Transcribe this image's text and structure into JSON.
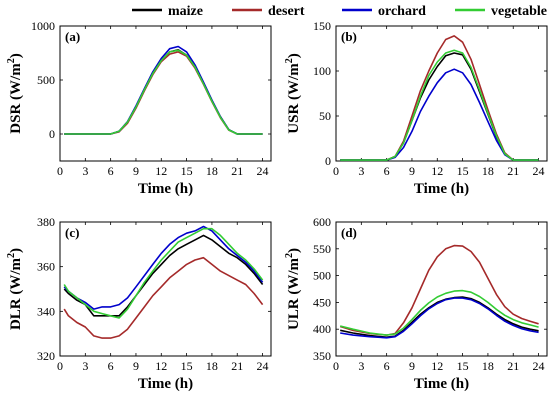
{
  "legend": [
    {
      "name": "maize",
      "color": "#000000"
    },
    {
      "name": "desert",
      "color": "#a52a2a"
    },
    {
      "name": "orchard",
      "color": "#0000cc"
    },
    {
      "name": "vegetable",
      "color": "#33cc33"
    }
  ],
  "chart_data": [
    {
      "type": "line",
      "tag": "(a)",
      "ylabel": "DSR (W/m",
      "ylabel_sup": "2",
      "ylabel_close": ")",
      "xlabel": "Time (h)",
      "xlim": [
        0,
        25
      ],
      "ylim": [
        -250,
        1000
      ],
      "xticks": [
        0,
        3,
        6,
        9,
        12,
        15,
        18,
        21,
        24
      ],
      "yticks": [
        0,
        500,
        1000
      ],
      "x": [
        0.5,
        3,
        6,
        7,
        8,
        9,
        10,
        11,
        12,
        13,
        14,
        15,
        16,
        17,
        18,
        19,
        20,
        21,
        22,
        23,
        24
      ],
      "series": [
        {
          "name": "maize",
          "values": [
            0,
            0,
            0,
            25,
            110,
            250,
            410,
            560,
            680,
            760,
            780,
            730,
            620,
            470,
            310,
            160,
            40,
            0,
            0,
            0,
            0
          ]
        },
        {
          "name": "desert",
          "values": [
            0,
            0,
            0,
            20,
            100,
            240,
            400,
            550,
            670,
            740,
            760,
            720,
            610,
            460,
            300,
            150,
            35,
            0,
            0,
            0,
            0
          ]
        },
        {
          "name": "orchard",
          "values": [
            0,
            0,
            0,
            25,
            115,
            260,
            420,
            575,
            700,
            790,
            810,
            760,
            640,
            480,
            315,
            160,
            40,
            0,
            0,
            0,
            0
          ]
        },
        {
          "name": "vegetable",
          "values": [
            0,
            0,
            0,
            25,
            110,
            250,
            410,
            560,
            680,
            760,
            775,
            730,
            620,
            465,
            305,
            155,
            38,
            0,
            0,
            0,
            0
          ]
        }
      ]
    },
    {
      "type": "line",
      "tag": "(b)",
      "ylabel": "USR (W/m",
      "ylabel_sup": "2",
      "ylabel_close": ")",
      "xlabel": "Time (h)",
      "xlim": [
        0,
        25
      ],
      "ylim": [
        0,
        150
      ],
      "xticks": [
        0,
        3,
        6,
        9,
        12,
        15,
        18,
        21,
        24
      ],
      "yticks": [
        0,
        50,
        100,
        150
      ],
      "x": [
        0.5,
        3,
        6,
        7,
        8,
        9,
        10,
        11,
        12,
        13,
        14,
        15,
        16,
        17,
        18,
        19,
        20,
        21,
        22,
        23,
        24
      ],
      "series": [
        {
          "name": "maize",
          "values": [
            1,
            1,
            1,
            5,
            20,
            45,
            70,
            90,
            105,
            117,
            120,
            118,
            102,
            77,
            52,
            27,
            8,
            1,
            1,
            1,
            1
          ]
        },
        {
          "name": "desert",
          "values": [
            1,
            1,
            1,
            5,
            22,
            50,
            78,
            100,
            120,
            135,
            139,
            132,
            113,
            85,
            57,
            30,
            9,
            1,
            1,
            1,
            1
          ]
        },
        {
          "name": "orchard",
          "values": [
            1,
            1,
            1,
            4,
            15,
            33,
            55,
            72,
            87,
            98,
            102,
            98,
            85,
            65,
            44,
            23,
            7,
            1,
            1,
            1,
            1
          ]
        },
        {
          "name": "vegetable",
          "values": [
            1,
            1,
            1,
            5,
            20,
            45,
            72,
            95,
            110,
            120,
            123,
            120,
            104,
            79,
            53,
            28,
            8,
            1,
            1,
            1,
            1
          ]
        }
      ]
    },
    {
      "type": "line",
      "tag": "(c)",
      "ylabel": "DLR (W/m",
      "ylabel_sup": "2",
      "ylabel_close": ")",
      "xlabel": "Time (h)",
      "xlim": [
        0,
        25
      ],
      "ylim": [
        320,
        380
      ],
      "xticks": [
        0,
        3,
        6,
        9,
        12,
        15,
        18,
        21,
        24
      ],
      "yticks": [
        320,
        340,
        360,
        380
      ],
      "x": [
        0.5,
        1,
        2,
        3,
        4,
        5,
        6,
        7,
        8,
        9,
        10,
        11,
        12,
        13,
        14,
        15,
        16,
        17,
        18,
        19,
        20,
        21,
        22,
        23,
        24
      ],
      "series": [
        {
          "name": "maize",
          "values": [
            350,
            348,
            345,
            343,
            338,
            338,
            338,
            338,
            342,
            347,
            352,
            357,
            361,
            365,
            368,
            370,
            372,
            374,
            372,
            369,
            366,
            364,
            361,
            357,
            352
          ]
        },
        {
          "name": "desert",
          "values": [
            341,
            338,
            335,
            333,
            329,
            328,
            328,
            329,
            332,
            337,
            342,
            347,
            351,
            355,
            358,
            361,
            363,
            364,
            361,
            358,
            356,
            354,
            352,
            348,
            343
          ]
        },
        {
          "name": "orchard",
          "values": [
            351,
            349,
            346,
            344,
            341,
            342,
            342,
            343,
            346,
            351,
            356,
            361,
            366,
            370,
            373,
            375,
            376,
            378,
            376,
            372,
            368,
            365,
            362,
            358,
            353
          ]
        },
        {
          "name": "vegetable",
          "values": [
            352,
            349,
            346,
            343,
            340,
            339,
            338,
            337,
            341,
            347,
            353,
            358,
            363,
            367,
            371,
            373,
            375,
            377,
            377,
            374,
            370,
            366,
            363,
            359,
            354
          ]
        }
      ]
    },
    {
      "type": "line",
      "tag": "(d)",
      "ylabel": "ULR (W/m",
      "ylabel_sup": "2",
      "ylabel_close": ")",
      "xlabel": "Time (h)",
      "xlim": [
        0,
        25
      ],
      "ylim": [
        350,
        600
      ],
      "xticks": [
        0,
        3,
        6,
        9,
        12,
        15,
        18,
        21,
        24
      ],
      "yticks": [
        350,
        400,
        450,
        500,
        550,
        600
      ],
      "x": [
        0.5,
        2,
        4,
        6,
        7,
        8,
        9,
        10,
        11,
        12,
        13,
        14,
        15,
        16,
        17,
        18,
        19,
        20,
        21,
        22,
        23,
        24
      ],
      "series": [
        {
          "name": "maize",
          "values": [
            398,
            393,
            388,
            385,
            387,
            398,
            413,
            428,
            440,
            450,
            456,
            459,
            460,
            457,
            450,
            440,
            428,
            418,
            410,
            404,
            400,
            397
          ]
        },
        {
          "name": "desert",
          "values": [
            405,
            398,
            392,
            389,
            392,
            412,
            440,
            475,
            510,
            535,
            550,
            556,
            555,
            545,
            525,
            495,
            465,
            442,
            428,
            420,
            415,
            410
          ]
        },
        {
          "name": "orchard",
          "values": [
            393,
            389,
            386,
            384,
            386,
            396,
            410,
            425,
            438,
            448,
            455,
            458,
            458,
            455,
            448,
            438,
            426,
            415,
            407,
            401,
            397,
            394
          ]
        },
        {
          "name": "vegetable",
          "values": [
            406,
            400,
            393,
            389,
            391,
            402,
            418,
            435,
            449,
            460,
            467,
            471,
            472,
            469,
            461,
            450,
            437,
            426,
            418,
            412,
            408,
            404
          ]
        }
      ]
    }
  ]
}
